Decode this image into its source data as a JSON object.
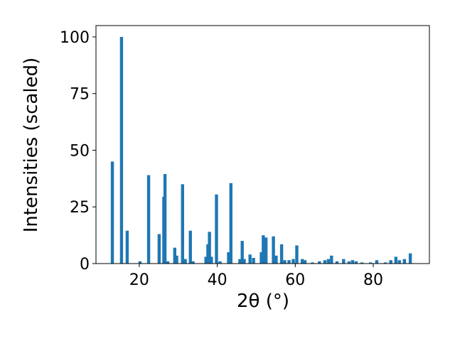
{
  "chart_data": {
    "type": "bar",
    "xlabel": "2θ (°)",
    "ylabel": "Intensities (scaled)",
    "color": "#1f77b4",
    "x": [
      13.1,
      15.45,
      16.9,
      20.2,
      22.4,
      25.1,
      26.3,
      26.6,
      27.3,
      29.1,
      29.6,
      31.1,
      31.8,
      33.1,
      33.8,
      37.1,
      37.6,
      38.0,
      38.5,
      39.8,
      40.7,
      42.9,
      43.5,
      45.8,
      46.4,
      46.9,
      48.4,
      49.3,
      51.3,
      51.8,
      52.5,
      54.4,
      55.1,
      56.5,
      57.3,
      58.4,
      59.5,
      60.4,
      61.8,
      62.5,
      64.4,
      66.2,
      67.6,
      68.5,
      69.3,
      70.7,
      72.4,
      73.8,
      74.7,
      75.6,
      77.1,
      79.3,
      80.9,
      83.1,
      84.5,
      85.8,
      86.7,
      88.0,
      89.5
    ],
    "values": [
      45,
      100,
      14.5,
      1,
      39,
      13,
      29.5,
      39.5,
      1,
      7,
      3.5,
      35,
      2,
      14.5,
      1,
      3,
      8.5,
      14,
      3,
      30.5,
      1,
      5,
      35.5,
      2,
      10,
      2,
      4,
      2.5,
      5,
      12.5,
      11.5,
      12,
      3.5,
      8.5,
      1.5,
      1.5,
      2,
      8,
      2,
      1.5,
      0.5,
      1,
      1.5,
      2,
      3.5,
      1,
      2,
      1,
      1.5,
      1,
      0.5,
      0.5,
      1.5,
      0.5,
      1.5,
      3,
      1.5,
      2,
      4.5
    ],
    "xlim": [
      8.9,
      94.4
    ],
    "ylim": [
      0,
      105
    ],
    "xticks": [
      20,
      40,
      60,
      80
    ],
    "yticks": [
      0,
      25,
      50,
      75,
      100
    ]
  }
}
